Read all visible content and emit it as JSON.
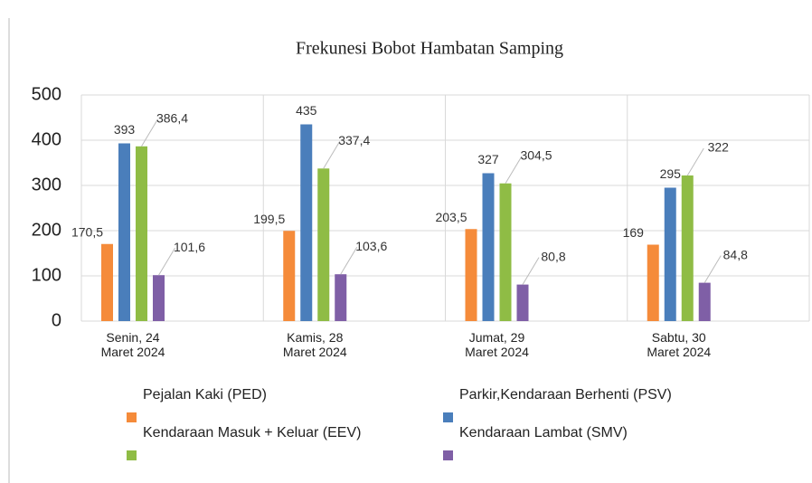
{
  "chart_data": {
    "type": "bar",
    "title": "Frekunesi Bobot Hambatan Samping",
    "categories": [
      "Senin, 24 Maret 2024",
      "Kamis, 28 Maret 2024",
      "Jumat, 29 Maret 2024",
      "Sabtu, 30 Maret 2024"
    ],
    "series": [
      {
        "name": "Pejalan Kaki (PED)",
        "color": "#f58b3a",
        "values": [
          170.5,
          199.5,
          203.5,
          169
        ],
        "value_labels": [
          "170,5",
          "199,5",
          "203,5",
          "169"
        ]
      },
      {
        "name": "Parkir,Kendaraan Berhenti (PSV)",
        "color": "#4a7ebb",
        "values": [
          393,
          435,
          327,
          295
        ],
        "value_labels": [
          "393",
          "435",
          "327",
          "295"
        ]
      },
      {
        "name": "Kendaraan Masuk + Keluar (EEV)",
        "color": "#8fbc45",
        "values": [
          386.4,
          337.4,
          304.5,
          322
        ],
        "value_labels": [
          "386,4",
          "337,4",
          "304,5",
          "322"
        ]
      },
      {
        "name": "Kendaraan Lambat (SMV)",
        "color": "#7f5fa6",
        "values": [
          101.6,
          103.6,
          80.8,
          84.8
        ],
        "value_labels": [
          "101,6",
          "103,6",
          "80,8",
          "84,8"
        ]
      }
    ],
    "ylim": [
      0,
      500
    ],
    "yticks": [
      0,
      100,
      200,
      300,
      400,
      500
    ],
    "grid": true
  }
}
